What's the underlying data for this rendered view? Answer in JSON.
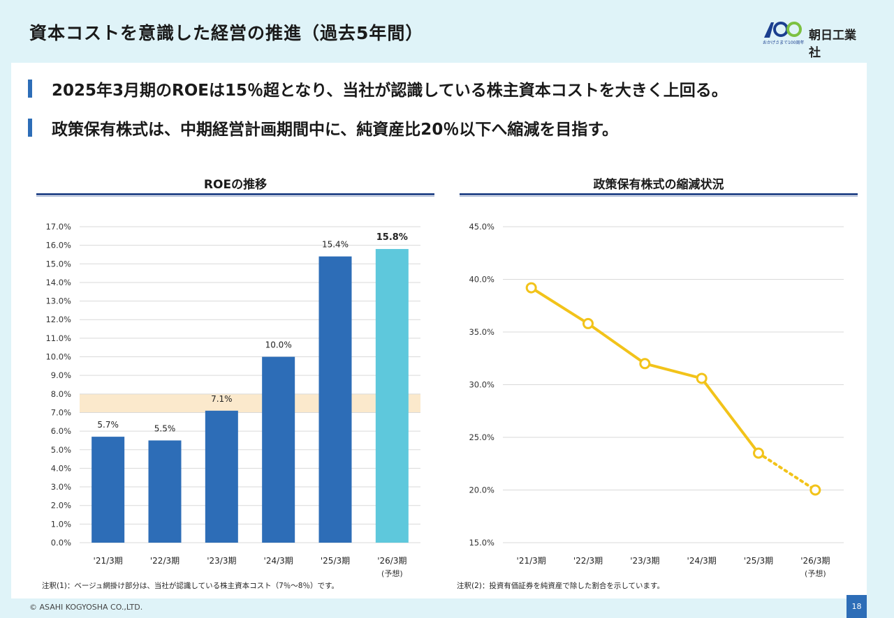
{
  "header": {
    "title": "資本コストを意識した経営の推進（過去5年間）",
    "company_name": "朝日工業社",
    "logo_tagline": "おかげさまで100周年",
    "logo_mark_text": "100"
  },
  "bullets": [
    "2025年3月期のROEは15％超となり、当社が認識している株主資本コストを大きく上回る。",
    "政策保有株式は、中期経営計画期間中に、純資産比20％以下へ縮減を目指す。"
  ],
  "chart_data": [
    {
      "type": "bar",
      "title": "ROEの推移",
      "categories": [
        "'21/3期",
        "'22/3期",
        "'23/3期",
        "'24/3期",
        "'25/3期",
        "'26/3期"
      ],
      "category_sublabels": [
        "",
        "",
        "",
        "",
        "",
        "(予想)"
      ],
      "values": [
        5.7,
        5.5,
        7.1,
        10.0,
        15.4,
        15.8
      ],
      "value_labels": [
        "5.7%",
        "5.5%",
        "7.1%",
        "10.0%",
        "15.4%",
        "15.8%"
      ],
      "forecast_index": 5,
      "ylim": [
        0,
        17
      ],
      "ytick_step": 1,
      "ytick_format": "percent_1dp",
      "shaded_band": [
        7,
        8
      ],
      "bar_color": "#2d6db7",
      "forecast_color": "#5ec8dc",
      "band_color": "#fbe9cc",
      "grid": true,
      "note": "注釈(1)：ベージュ網掛け部分は、当社が認識している株主資本コスト（7％～8％）です。"
    },
    {
      "type": "line",
      "title": "政策保有株式の縮減状況",
      "categories": [
        "'21/3期",
        "'22/3期",
        "'23/3期",
        "'24/3期",
        "'25/3期",
        "'26/3期"
      ],
      "category_sublabels": [
        "",
        "",
        "",
        "",
        "",
        "(予想)"
      ],
      "values": [
        39.2,
        35.8,
        32.0,
        30.6,
        23.5,
        20.0
      ],
      "forecast_index": 5,
      "ylim": [
        15,
        45
      ],
      "ytick_step": 5,
      "ytick_format": "percent_1dp",
      "line_color": "#f2c31a",
      "grid": true,
      "note": "注釈(2)：投資有価証券を純資産で除した割合を示しています。"
    }
  ],
  "footer": {
    "copyright": "© ASAHI KOGYOSHA CO.,LTD.",
    "page_number": "18"
  }
}
